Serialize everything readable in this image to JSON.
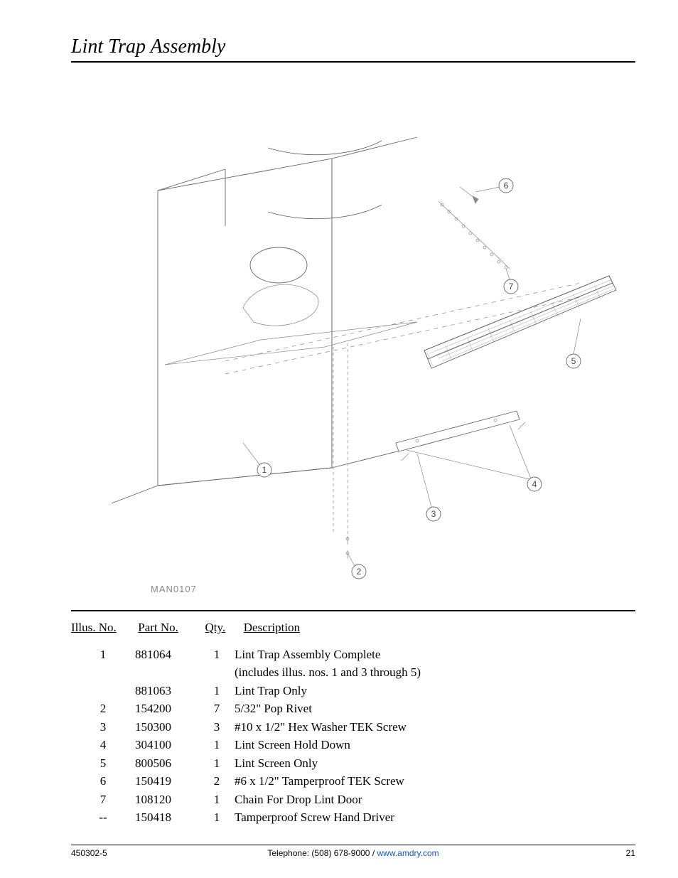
{
  "page_title": "Lint Trap Assembly",
  "diagram_label": "MAN0107",
  "callouts": [
    "1",
    "2",
    "3",
    "4",
    "5",
    "6",
    "7"
  ],
  "table": {
    "headers": {
      "illus": "Illus. No.",
      "part": "Part No.",
      "qty": "Qty.",
      "desc": "Description"
    },
    "rows": [
      {
        "illus": "1",
        "part": "881064",
        "qty": "1",
        "desc": "Lint Trap Assembly Complete",
        "desc2": "(includes illus. nos. 1 and 3 through 5)"
      },
      {
        "illus": "",
        "part": "881063",
        "qty": "1",
        "desc": "Lint Trap Only"
      },
      {
        "illus": "2",
        "part": "154200",
        "qty": "7",
        "desc": "5/32\" Pop Rivet"
      },
      {
        "illus": "3",
        "part": "150300",
        "qty": "3",
        "desc": "#10 x 1/2\" Hex Washer TEK Screw"
      },
      {
        "illus": "4",
        "part": "304100",
        "qty": "1",
        "desc": "Lint Screen Hold Down"
      },
      {
        "illus": "5",
        "part": "800506",
        "qty": "1",
        "desc": "Lint Screen Only"
      },
      {
        "illus": "6",
        "part": "150419",
        "qty": "2",
        "desc": "#6 x 1/2\" Tamperproof TEK Screw"
      },
      {
        "illus": "7",
        "part": "108120",
        "qty": "1",
        "desc": "Chain For Drop Lint Door"
      },
      {
        "illus": "--",
        "part": "150418",
        "qty": "1",
        "desc": "Tamperproof Screw Hand Driver"
      }
    ]
  },
  "footer": {
    "left": "450302-5",
    "phone_label": "Telephone:",
    "phone": "(508) 678-9000",
    "sep": " / ",
    "url": "www.amdry.com",
    "page_no": "21"
  },
  "colors": {
    "line": "#666666",
    "light": "#888888",
    "link": "#1155cc",
    "text": "#000000"
  }
}
